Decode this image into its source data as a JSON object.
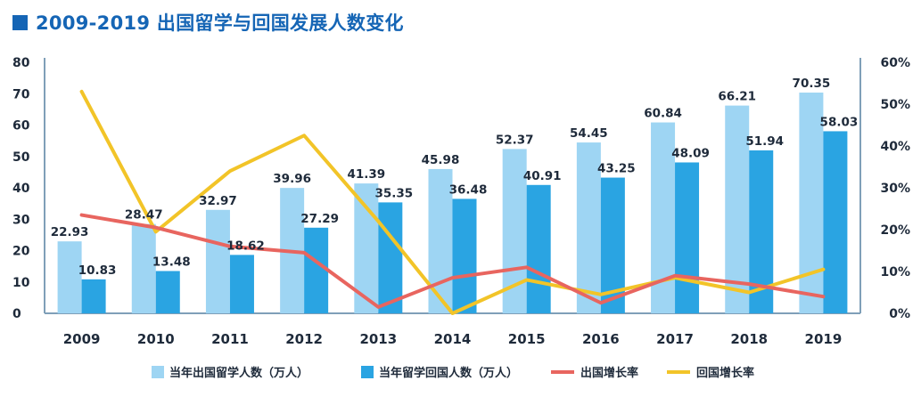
{
  "page": {
    "title": "2009-2019 出国留学与回国发展人数变化"
  },
  "colors": {
    "title": "#1565b5",
    "study_abroad_bar": "#9ed5f3",
    "returnee_bar": "#2aa4e2",
    "abroad_growth_line": "#e8655f",
    "return_growth_line": "#f2c428",
    "axis": "#7f9fb8"
  },
  "chart_data": {
    "type": "bar",
    "title": "2009-2019 出国留学与回国发展人数变化",
    "categories": [
      "2009",
      "2010",
      "2011",
      "2012",
      "2013",
      "2014",
      "2015",
      "2016",
      "2017",
      "2018",
      "2019"
    ],
    "series": [
      {
        "name": "当年出国留学人数（万人）",
        "kind": "bar",
        "axis": "left",
        "values": [
          22.93,
          28.47,
          32.97,
          39.96,
          41.39,
          45.98,
          52.37,
          54.45,
          60.84,
          66.21,
          70.35
        ]
      },
      {
        "name": "当年留学回国人数（万人）",
        "kind": "bar",
        "axis": "left",
        "values": [
          10.83,
          13.48,
          18.62,
          27.29,
          35.35,
          36.48,
          40.91,
          43.25,
          48.09,
          51.94,
          58.03
        ]
      },
      {
        "name": "出国增长率",
        "kind": "line",
        "axis": "right",
        "values": [
          23.5,
          20.5,
          16.0,
          14.5,
          1.5,
          8.5,
          11.0,
          2.5,
          9.0,
          7.0,
          4.0
        ]
      },
      {
        "name": "回国增长率",
        "kind": "line",
        "axis": "right",
        "values": [
          53.0,
          19.5,
          34.0,
          42.5,
          22.0,
          0.0,
          8.0,
          4.5,
          8.5,
          5.0,
          10.5
        ]
      }
    ],
    "y_left": {
      "min": 0,
      "max": 80,
      "ticks": [
        "0",
        "10",
        "20",
        "30",
        "40",
        "50",
        "60",
        "70",
        "80"
      ]
    },
    "y_right": {
      "min": 0,
      "max": 60,
      "ticks": [
        "0%",
        "10%",
        "20%",
        "30%",
        "40%",
        "50%",
        "60%"
      ]
    },
    "legend_position": "bottom",
    "grid": false
  }
}
